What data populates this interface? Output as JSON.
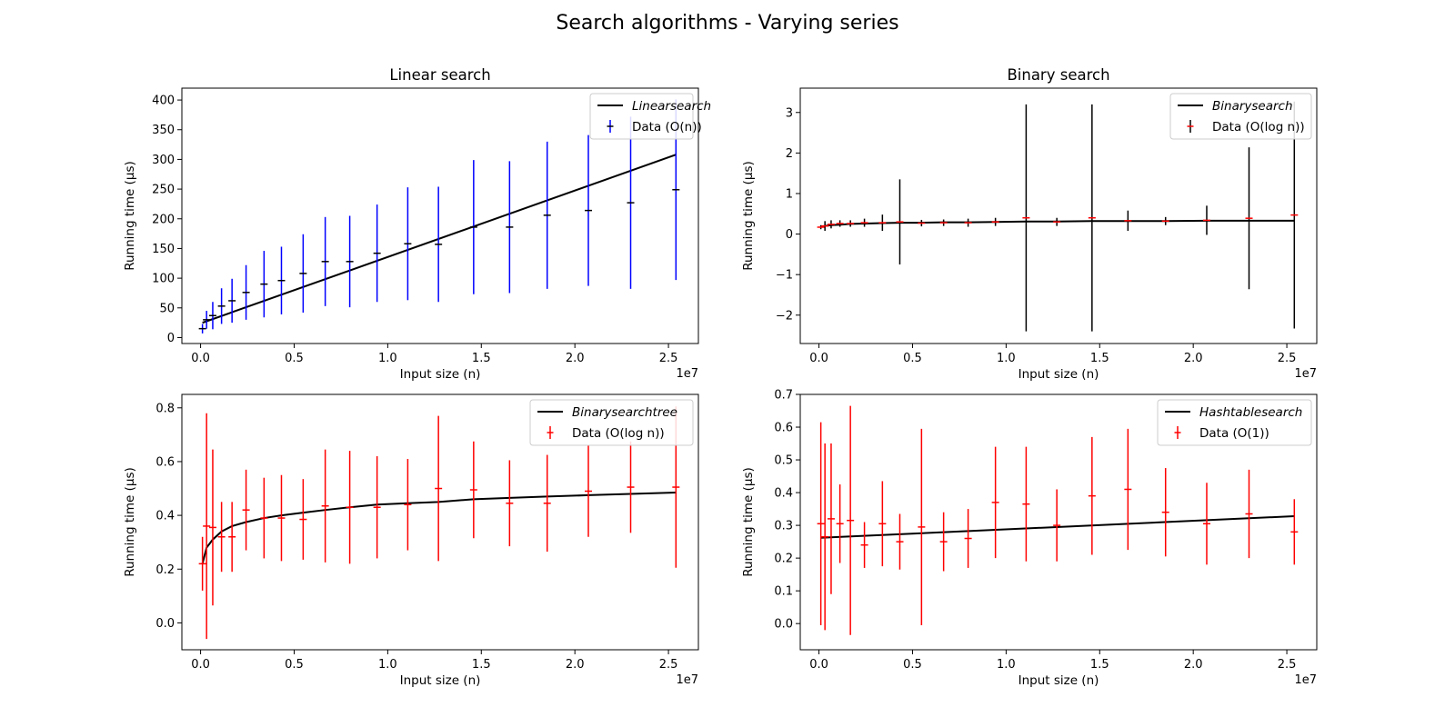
{
  "figure": {
    "title": "Search algorithms - Varying series"
  },
  "chart_data": [
    {
      "type": "line",
      "title": "Linear search",
      "xlabel": "Input size (n)",
      "ylabel": "Running time (µs)",
      "x_offset_label": "1e7",
      "xlim": [
        -1.0,
        26.6
      ],
      "ylim": [
        -10,
        420
      ],
      "x_ticks": [
        0.0,
        0.5,
        1.0,
        1.5,
        2.0,
        2.5
      ],
      "x_tick_labels": [
        "0.0",
        "0.5",
        "1.0",
        "1.5",
        "2.0",
        "2.5"
      ],
      "y_ticks": [
        0,
        50,
        100,
        150,
        200,
        250,
        300,
        350,
        400
      ],
      "y_tick_labels": [
        "0",
        "50",
        "100",
        "150",
        "200",
        "250",
        "300",
        "350",
        "400"
      ],
      "grid": false,
      "legend_position": "upper right",
      "series": [
        {
          "name": "Linearsearch",
          "kind": "line",
          "color": "#000000",
          "x": [
            0.1,
            25.4
          ],
          "y": [
            25,
            308
          ]
        },
        {
          "name": "Data (O(n))",
          "kind": "errorbar",
          "color": "#000000",
          "ecolor": "#0000ff",
          "x": [
            0.1,
            0.32,
            0.65,
            1.12,
            1.68,
            2.43,
            3.39,
            4.32,
            5.48,
            6.66,
            7.97,
            9.43,
            11.07,
            12.71,
            14.59,
            16.51,
            18.52,
            20.72,
            22.98,
            25.4
          ],
          "y": [
            15,
            30,
            37,
            53,
            62,
            76,
            90,
            96,
            108,
            128,
            128,
            142,
            158,
            157,
            186,
            186,
            206,
            214,
            227,
            249
          ],
          "yerr": [
            8,
            15,
            23,
            30,
            37,
            46,
            56,
            57,
            66,
            75,
            77,
            82,
            95,
            97,
            113,
            111,
            124,
            127,
            145,
            152
          ]
        }
      ]
    },
    {
      "type": "line",
      "title": "Binary search",
      "xlabel": "Input size (n)",
      "ylabel": "Running time (µs)",
      "x_offset_label": "1e7",
      "xlim": [
        -1.0,
        26.6
      ],
      "ylim": [
        -2.7,
        3.6
      ],
      "x_ticks": [
        0.0,
        0.5,
        1.0,
        1.5,
        2.0,
        2.5
      ],
      "x_tick_labels": [
        "0.0",
        "0.5",
        "1.0",
        "1.5",
        "2.0",
        "2.5"
      ],
      "y_ticks": [
        -2,
        -1,
        0,
        1,
        2,
        3
      ],
      "y_tick_labels": [
        "−2",
        "−1",
        "0",
        "1",
        "2",
        "3"
      ],
      "grid": false,
      "legend_position": "upper right",
      "series": [
        {
          "name": "Binarysearch",
          "kind": "line",
          "color": "#000000",
          "x": [
            0.1,
            0.32,
            0.65,
            1.12,
            1.68,
            2.43,
            3.39,
            4.32,
            5.48,
            6.66,
            7.97,
            9.43,
            11.07,
            12.71,
            14.59,
            16.51,
            18.52,
            20.72,
            22.98,
            25.4
          ],
          "y": [
            0.18,
            0.2,
            0.22,
            0.23,
            0.25,
            0.26,
            0.27,
            0.28,
            0.28,
            0.29,
            0.29,
            0.3,
            0.31,
            0.31,
            0.32,
            0.32,
            0.32,
            0.33,
            0.33,
            0.33
          ]
        },
        {
          "name": "Data (O(log n))",
          "kind": "errorbar",
          "color": "#ff0000",
          "ecolor": "#000000",
          "x": [
            0.1,
            0.32,
            0.65,
            1.12,
            1.68,
            2.43,
            3.39,
            4.32,
            5.48,
            6.66,
            7.97,
            9.43,
            11.07,
            12.71,
            14.59,
            16.51,
            18.52,
            20.72,
            22.98,
            25.4
          ],
          "y": [
            0.17,
            0.2,
            0.24,
            0.26,
            0.26,
            0.28,
            0.28,
            0.3,
            0.27,
            0.28,
            0.28,
            0.3,
            0.4,
            0.3,
            0.4,
            0.33,
            0.32,
            0.34,
            0.39,
            0.47
          ],
          "yerr": [
            0.05,
            0.12,
            0.1,
            0.08,
            0.08,
            0.1,
            0.2,
            1.05,
            0.08,
            0.08,
            0.1,
            0.1,
            2.8,
            0.1,
            2.8,
            0.25,
            0.1,
            0.36,
            1.75,
            2.8
          ]
        }
      ]
    },
    {
      "type": "line",
      "title": "",
      "xlabel": "Input size (n)",
      "ylabel": "Running time (µs)",
      "x_offset_label": "1e7",
      "xlim": [
        -1.0,
        26.6
      ],
      "ylim": [
        -0.1,
        0.85
      ],
      "x_ticks": [
        0.0,
        0.5,
        1.0,
        1.5,
        2.0,
        2.5
      ],
      "x_tick_labels": [
        "0.0",
        "0.5",
        "1.0",
        "1.5",
        "2.0",
        "2.5"
      ],
      "y_ticks": [
        0.0,
        0.2,
        0.4,
        0.6,
        0.8
      ],
      "y_tick_labels": [
        "0.0",
        "0.2",
        "0.4",
        "0.6",
        "0.8"
      ],
      "grid": false,
      "legend_position": "upper right",
      "series": [
        {
          "name": "Binarysearchtree",
          "kind": "line",
          "color": "#000000",
          "x": [
            0.1,
            0.32,
            0.65,
            1.12,
            1.68,
            2.43,
            3.39,
            4.32,
            5.48,
            6.66,
            7.97,
            9.43,
            11.07,
            12.71,
            14.59,
            16.51,
            18.52,
            20.72,
            22.98,
            25.4
          ],
          "y": [
            0.22,
            0.28,
            0.31,
            0.34,
            0.36,
            0.375,
            0.39,
            0.4,
            0.41,
            0.42,
            0.43,
            0.44,
            0.445,
            0.45,
            0.46,
            0.465,
            0.47,
            0.475,
            0.48,
            0.485
          ]
        },
        {
          "name": "Data (O(log n))",
          "kind": "errorbar",
          "color": "#ff0000",
          "ecolor": "#ff0000",
          "x": [
            0.1,
            0.32,
            0.65,
            1.12,
            1.68,
            2.43,
            3.39,
            4.32,
            5.48,
            6.66,
            7.97,
            9.43,
            11.07,
            12.71,
            14.59,
            16.51,
            18.52,
            20.72,
            22.98,
            25.4
          ],
          "y": [
            0.22,
            0.36,
            0.355,
            0.32,
            0.32,
            0.42,
            0.39,
            0.39,
            0.385,
            0.435,
            0.43,
            0.43,
            0.44,
            0.5,
            0.495,
            0.445,
            0.445,
            0.49,
            0.505,
            0.505
          ],
          "yerr": [
            0.1,
            0.42,
            0.29,
            0.13,
            0.13,
            0.15,
            0.15,
            0.16,
            0.15,
            0.21,
            0.21,
            0.19,
            0.17,
            0.27,
            0.18,
            0.16,
            0.18,
            0.17,
            0.17,
            0.3
          ]
        }
      ]
    },
    {
      "type": "line",
      "title": "",
      "xlabel": "Input size (n)",
      "ylabel": "Running time (µs)",
      "x_offset_label": "1e7",
      "xlim": [
        -1.0,
        26.6
      ],
      "ylim": [
        -0.08,
        0.7
      ],
      "x_ticks": [
        0.0,
        0.5,
        1.0,
        1.5,
        2.0,
        2.5
      ],
      "x_tick_labels": [
        "0.0",
        "0.5",
        "1.0",
        "1.5",
        "2.0",
        "2.5"
      ],
      "y_ticks": [
        0.0,
        0.1,
        0.2,
        0.3,
        0.4,
        0.5,
        0.6,
        0.7
      ],
      "y_tick_labels": [
        "0.0",
        "0.1",
        "0.2",
        "0.3",
        "0.4",
        "0.5",
        "0.6",
        "0.7"
      ],
      "grid": false,
      "legend_position": "upper right",
      "series": [
        {
          "name": "Hashtablesearch",
          "kind": "line",
          "color": "#000000",
          "x": [
            0.1,
            25.4
          ],
          "y": [
            0.262,
            0.328
          ]
        },
        {
          "name": "Data (O(1))",
          "kind": "errorbar",
          "color": "#ff0000",
          "ecolor": "#ff0000",
          "x": [
            0.1,
            0.32,
            0.65,
            1.12,
            1.68,
            2.43,
            3.39,
            4.32,
            5.48,
            6.66,
            7.97,
            9.43,
            11.07,
            12.71,
            14.59,
            16.51,
            18.52,
            20.72,
            22.98,
            25.4
          ],
          "y": [
            0.305,
            0.265,
            0.32,
            0.305,
            0.315,
            0.24,
            0.305,
            0.25,
            0.295,
            0.25,
            0.26,
            0.37,
            0.365,
            0.3,
            0.39,
            0.41,
            0.34,
            0.305,
            0.335,
            0.28
          ],
          "yerr": [
            0.31,
            0.285,
            0.23,
            0.12,
            0.35,
            0.07,
            0.13,
            0.085,
            0.3,
            0.09,
            0.09,
            0.17,
            0.175,
            0.11,
            0.18,
            0.185,
            0.135,
            0.125,
            0.135,
            0.1
          ]
        }
      ]
    }
  ]
}
